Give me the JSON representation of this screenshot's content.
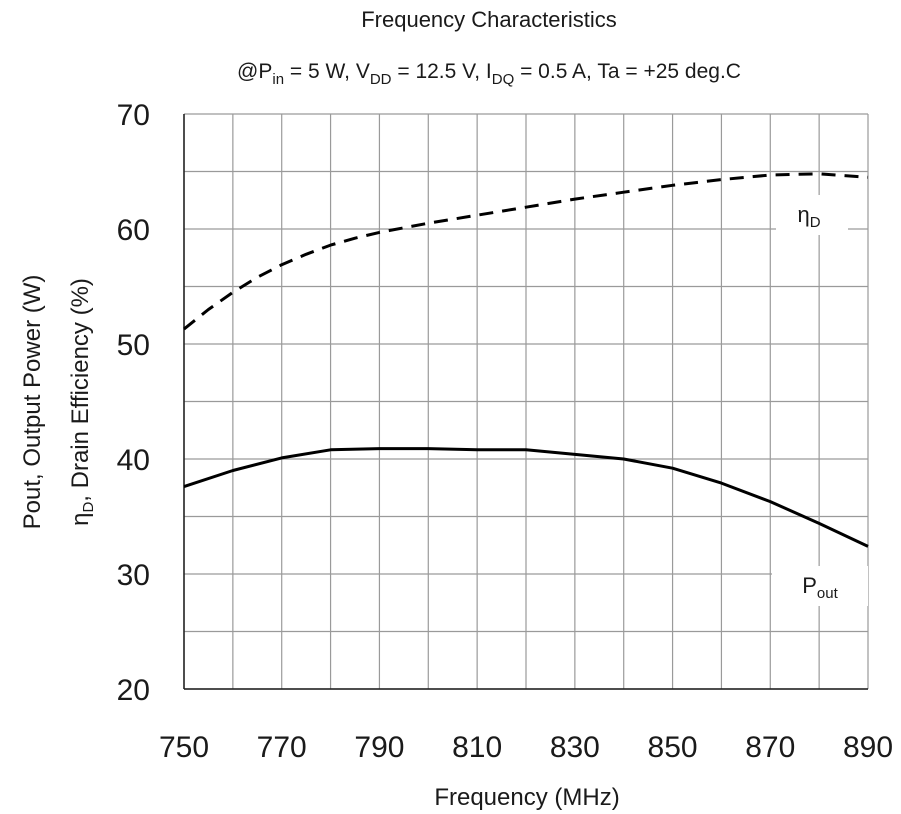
{
  "chart_data": {
    "type": "line",
    "title": "Frequency Characteristics",
    "subtitle": {
      "p1": "@P",
      "p1_sub": "in",
      "p2": " = 5 W, V",
      "p2_sub": "DD",
      "p3": " = 12.5 V, I",
      "p3_sub": "DQ",
      "p4": " = 0.5 A, Ta = +25 deg.C"
    },
    "xlabel": "Frequency (MHz)",
    "ylabel_line1": "Pout, Output Power (W)",
    "ylabel_line2": {
      "a": "η",
      "a_sub": "D",
      "b": ", Drain Efficiency (%)"
    },
    "xlim": [
      750,
      890
    ],
    "ylim": [
      20,
      70
    ],
    "x_ticks": [
      750,
      770,
      790,
      810,
      830,
      850,
      870,
      890
    ],
    "y_ticks": [
      20,
      30,
      40,
      50,
      60,
      70
    ],
    "grid": true,
    "series": [
      {
        "name": {
          "main": "η",
          "sub": "D"
        },
        "style": "dashed",
        "x": [
          750,
          755,
          760,
          765,
          770,
          775,
          780,
          785,
          790,
          800,
          810,
          820,
          830,
          840,
          850,
          860,
          870,
          880,
          890
        ],
        "values": [
          51.3,
          53.0,
          54.5,
          55.8,
          56.9,
          57.8,
          58.6,
          59.2,
          59.7,
          60.5,
          61.2,
          61.9,
          62.6,
          63.2,
          63.8,
          64.3,
          64.7,
          64.8,
          64.5
        ]
      },
      {
        "name": {
          "main": "P",
          "sub": "out"
        },
        "style": "solid",
        "x": [
          750,
          760,
          770,
          780,
          790,
          800,
          810,
          820,
          830,
          840,
          850,
          860,
          870,
          880,
          890
        ],
        "values": [
          37.6,
          39.0,
          40.1,
          40.8,
          40.9,
          40.9,
          40.8,
          40.8,
          40.4,
          40.0,
          39.2,
          37.9,
          36.3,
          34.4,
          32.4
        ]
      }
    ],
    "colors": {
      "line": "#000000",
      "grid": "#9a9a9a",
      "axis": "#1a1a1a"
    }
  }
}
